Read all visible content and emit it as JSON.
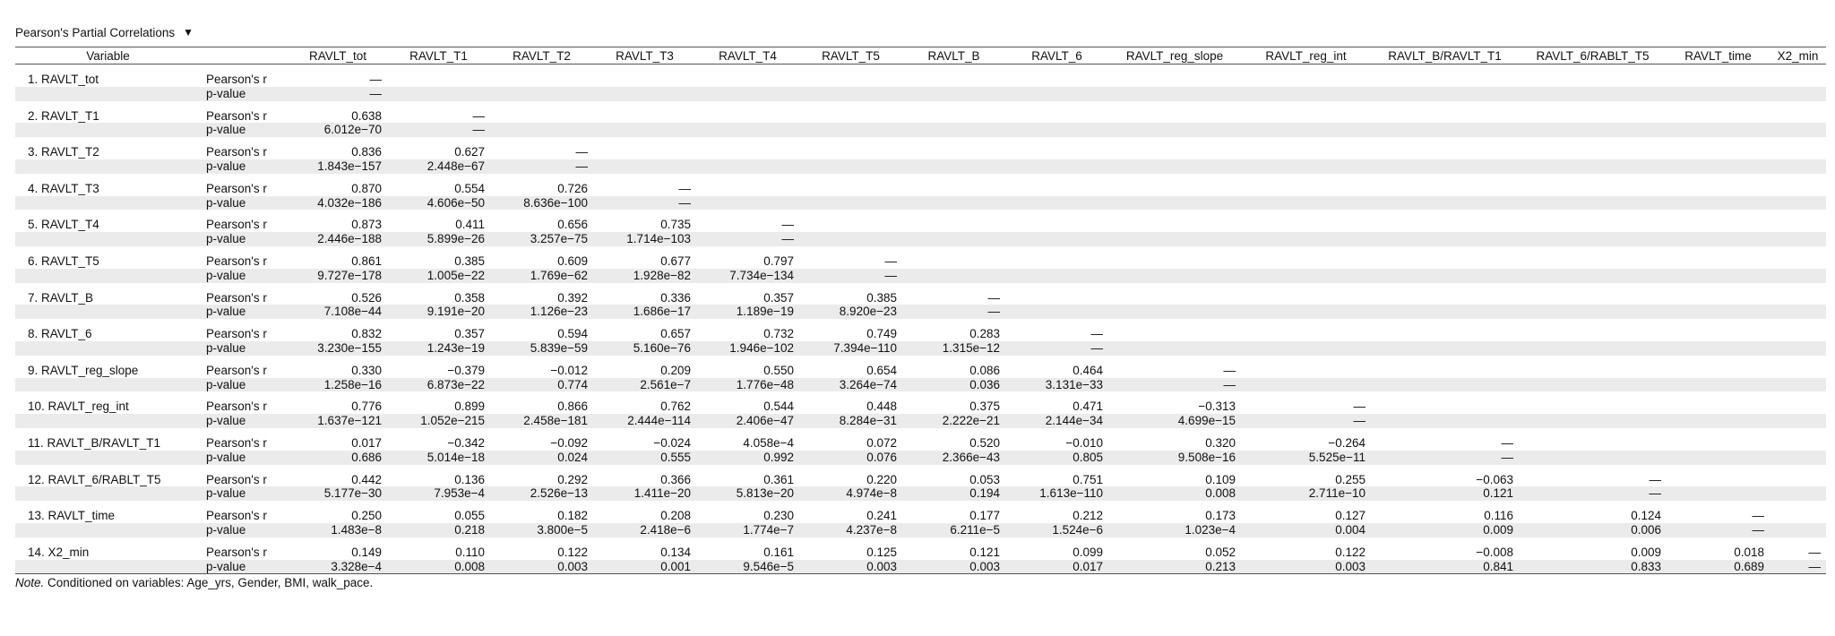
{
  "title": "Pearson's Partial Correlations",
  "menu_icon": "triangle-down",
  "header": [
    "Variable",
    "",
    "RAVLT_tot",
    "RAVLT_T1",
    "RAVLT_T2",
    "RAVLT_T3",
    "RAVLT_T4",
    "RAVLT_T5",
    "RAVLT_B",
    "RAVLT_6",
    "RAVLT_reg_slope",
    "RAVLT_reg_int",
    "RAVLT_B/RAVLT_T1",
    "RAVLT_6/RABLT_T5",
    "RAVLT_time",
    "X2_min"
  ],
  "stat_labels": {
    "r": "Pearson's r",
    "p": "p-value"
  },
  "rows": [
    {
      "name": "1. RAVLT_tot",
      "r": [
        "—"
      ],
      "p": [
        "—"
      ]
    },
    {
      "name": "2. RAVLT_T1",
      "r": [
        "0.638",
        "—"
      ],
      "p": [
        "6.012e−70",
        "—"
      ]
    },
    {
      "name": "3. RAVLT_T2",
      "r": [
        "0.836",
        "0.627",
        "—"
      ],
      "p": [
        "1.843e−157",
        "2.448e−67",
        "—"
      ]
    },
    {
      "name": "4. RAVLT_T3",
      "r": [
        "0.870",
        "0.554",
        "0.726",
        "—"
      ],
      "p": [
        "4.032e−186",
        "4.606e−50",
        "8.636e−100",
        "—"
      ]
    },
    {
      "name": "5. RAVLT_T4",
      "r": [
        "0.873",
        "0.411",
        "0.656",
        "0.735",
        "—"
      ],
      "p": [
        "2.446e−188",
        "5.899e−26",
        "3.257e−75",
        "1.714e−103",
        "—"
      ]
    },
    {
      "name": "6. RAVLT_T5",
      "r": [
        "0.861",
        "0.385",
        "0.609",
        "0.677",
        "0.797",
        "—"
      ],
      "p": [
        "9.727e−178",
        "1.005e−22",
        "1.769e−62",
        "1.928e−82",
        "7.734e−134",
        "—"
      ]
    },
    {
      "name": "7. RAVLT_B",
      "r": [
        "0.526",
        "0.358",
        "0.392",
        "0.336",
        "0.357",
        "0.385",
        "—"
      ],
      "p": [
        "7.108e−44",
        "9.191e−20",
        "1.126e−23",
        "1.686e−17",
        "1.189e−19",
        "8.920e−23",
        "—"
      ]
    },
    {
      "name": "8. RAVLT_6",
      "r": [
        "0.832",
        "0.357",
        "0.594",
        "0.657",
        "0.732",
        "0.749",
        "0.283",
        "—"
      ],
      "p": [
        "3.230e−155",
        "1.243e−19",
        "5.839e−59",
        "5.160e−76",
        "1.946e−102",
        "7.394e−110",
        "1.315e−12",
        "—"
      ]
    },
    {
      "name": "9. RAVLT_reg_slope",
      "r": [
        "0.330",
        "−0.379",
        "−0.012",
        "0.209",
        "0.550",
        "0.654",
        "0.086",
        "0.464",
        "—"
      ],
      "p": [
        "1.258e−16",
        "6.873e−22",
        "0.774",
        "2.561e−7",
        "1.776e−48",
        "3.264e−74",
        "0.036",
        "3.131e−33",
        "—"
      ]
    },
    {
      "name": "10. RAVLT_reg_int",
      "r": [
        "0.776",
        "0.899",
        "0.866",
        "0.762",
        "0.544",
        "0.448",
        "0.375",
        "0.471",
        "−0.313",
        "—"
      ],
      "p": [
        "1.637e−121",
        "1.052e−215",
        "2.458e−181",
        "2.444e−114",
        "2.406e−47",
        "8.284e−31",
        "2.222e−21",
        "2.144e−34",
        "4.699e−15",
        "—"
      ]
    },
    {
      "name": "11. RAVLT_B/RAVLT_T1",
      "r": [
        "0.017",
        "−0.342",
        "−0.092",
        "−0.024",
        "4.058e−4",
        "0.072",
        "0.520",
        "−0.010",
        "0.320",
        "−0.264",
        "—"
      ],
      "p": [
        "0.686",
        "5.014e−18",
        "0.024",
        "0.555",
        "0.992",
        "0.076",
        "2.366e−43",
        "0.805",
        "9.508e−16",
        "5.525e−11",
        "—"
      ]
    },
    {
      "name": "12. RAVLT_6/RABLT_T5",
      "r": [
        "0.442",
        "0.136",
        "0.292",
        "0.366",
        "0.361",
        "0.220",
        "0.053",
        "0.751",
        "0.109",
        "0.255",
        "−0.063",
        "—"
      ],
      "p": [
        "5.177e−30",
        "7.953e−4",
        "2.526e−13",
        "1.411e−20",
        "5.813e−20",
        "4.974e−8",
        "0.194",
        "1.613e−110",
        "0.008",
        "2.711e−10",
        "0.121",
        "—"
      ]
    },
    {
      "name": "13. RAVLT_time",
      "r": [
        "0.250",
        "0.055",
        "0.182",
        "0.208",
        "0.230",
        "0.241",
        "0.177",
        "0.212",
        "0.173",
        "0.127",
        "0.116",
        "0.124",
        "—"
      ],
      "p": [
        "1.483e−8",
        "0.218",
        "3.800e−5",
        "2.418e−6",
        "1.774e−7",
        "4.237e−8",
        "6.211e−5",
        "1.524e−6",
        "1.023e−4",
        "0.004",
        "0.009",
        "0.006",
        "—"
      ]
    },
    {
      "name": "14. X2_min",
      "r": [
        "0.149",
        "0.110",
        "0.122",
        "0.134",
        "0.161",
        "0.125",
        "0.121",
        "0.099",
        "0.052",
        "0.122",
        "−0.008",
        "0.009",
        "0.018",
        "—"
      ],
      "p": [
        "3.328e−4",
        "0.008",
        "0.003",
        "0.001",
        "9.546e−5",
        "0.003",
        "0.003",
        "0.017",
        "0.213",
        "0.003",
        "0.841",
        "0.833",
        "0.689",
        "—"
      ]
    }
  ],
  "note": {
    "prefix": "Note.",
    "text": " Conditioned on variables: Age_yrs, Gender, BMI, walk_pace."
  }
}
